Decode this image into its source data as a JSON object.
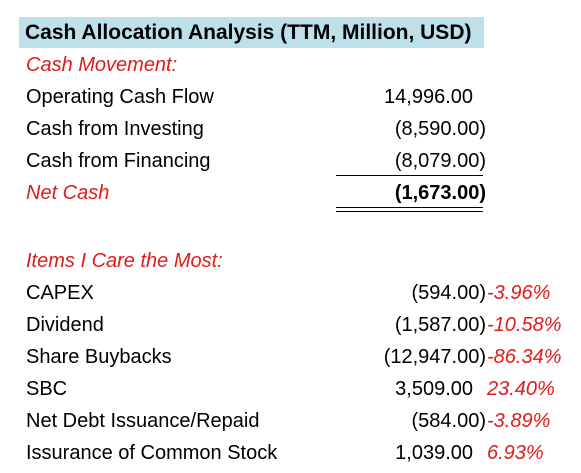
{
  "title": "Cash Allocation Analysis (TTM, Million, USD)",
  "cash_movement": {
    "heading": "Cash Movement:",
    "rows": [
      {
        "label": "Operating Cash Flow",
        "value": "14,996.00"
      },
      {
        "label": "Cash from Investing",
        "value": "(8,590.00)"
      },
      {
        "label": "Cash from Financing",
        "value": "(8,079.00)"
      }
    ],
    "net": {
      "label": "Net Cash",
      "value": "(1,673.00)"
    }
  },
  "care": {
    "heading": "Items I Care the Most:",
    "rows": [
      {
        "label": "CAPEX",
        "value": "(594.00)",
        "pct": "-3.96%"
      },
      {
        "label": "Dividend",
        "value": "(1,587.00)",
        "pct": "-10.58%"
      },
      {
        "label": "Share Buybacks",
        "value": "(12,947.00)",
        "pct": "-86.34%"
      },
      {
        "label": "SBC",
        "value": "3,509.00",
        "pct": "23.40%"
      },
      {
        "label": "Net Debt Issuance/Repaid",
        "value": "(584.00)",
        "pct": "-3.89%"
      },
      {
        "label": "Issurance of Common Stock",
        "value": "1,039.00",
        "pct": "6.93%"
      }
    ]
  },
  "colors": {
    "title_fill": "#bde0ea",
    "accent_red": "#e01b1b"
  }
}
